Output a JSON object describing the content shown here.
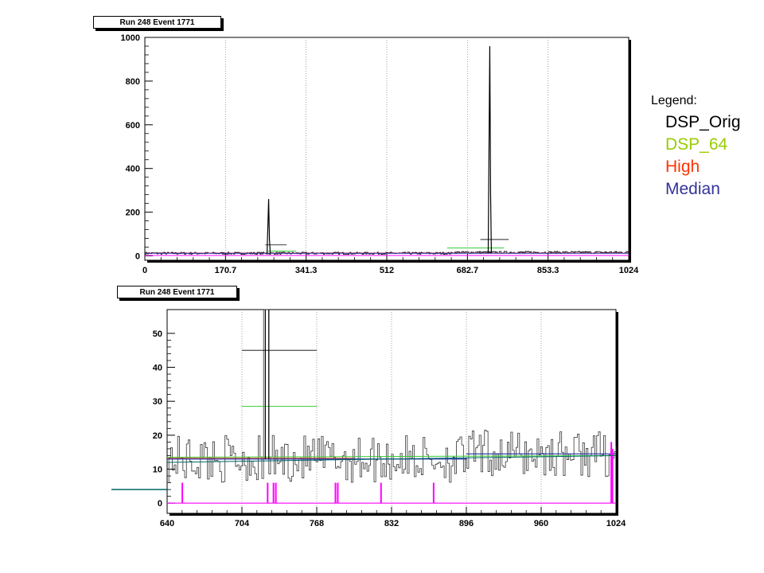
{
  "chart_data": [
    {
      "type": "line",
      "title": "Run 248 Event 1771",
      "xlim": [
        0,
        1024
      ],
      "ylim": [
        -20,
        1000
      ],
      "x_ticks": [
        "0",
        "170.7",
        "341.3",
        "512",
        "682.7",
        "853.3",
        "1024"
      ],
      "y_ticks": [
        "0",
        "200",
        "400",
        "600",
        "800",
        "1000"
      ],
      "grid": "vertical dotted at x tick positions",
      "baseline": 12,
      "peaks": [
        {
          "x": 262,
          "y": 260
        },
        {
          "x": 730,
          "y": 960
        }
      ],
      "series": [
        {
          "name": "DSP_Orig",
          "segments": [
            [
              255,
              300,
              20
            ],
            [
              710,
              770,
              45
            ]
          ]
        },
        {
          "name": "DSP_64",
          "segments": [
            [
              260,
              320,
              14
            ],
            [
              640,
              760,
              28
            ]
          ]
        },
        {
          "name": "High",
          "level": 13
        },
        {
          "name": "Median",
          "level": 12
        }
      ]
    },
    {
      "type": "line",
      "title": "Run 248 Event 1771",
      "xlim": [
        640,
        1024
      ],
      "ylim": [
        -3,
        57
      ],
      "x_ticks": [
        "640",
        "704",
        "768",
        "832",
        "896",
        "960",
        "1024"
      ],
      "y_ticks": [
        "0",
        "10",
        "20",
        "30",
        "40",
        "50"
      ],
      "grid": "vertical dotted at x tick positions",
      "segments": {
        "DSP_Orig_high": [
          704,
          768,
          45
        ],
        "DSP_64_high": [
          704,
          768,
          28.5
        ]
      },
      "median_levels": [
        [
          640,
          768,
          13
        ],
        [
          768,
          896,
          13
        ],
        [
          896,
          1024,
          14.5
        ]
      ],
      "pink_spikes": [
        {
          "x": 653,
          "y": -1
        },
        {
          "x": 726,
          "y": -1
        },
        {
          "x": 731,
          "y": -1
        },
        {
          "x": 733,
          "y": -1
        },
        {
          "x": 784,
          "y": -1
        },
        {
          "x": 786,
          "y": -1
        },
        {
          "x": 823,
          "y": -1
        },
        {
          "x": 868,
          "y": -1
        },
        {
          "x": 1020,
          "y": 18
        },
        {
          "x": 1021,
          "y": 16
        }
      ],
      "peak": {
        "x": 724,
        "y": 57
      }
    }
  ],
  "legend": {
    "title": "Legend:",
    "items": [
      {
        "label": "DSP_Orig",
        "color": "#000000"
      },
      {
        "label": "DSP_64",
        "color": "#99cc00"
      },
      {
        "label": "High",
        "color": "#ff3300"
      },
      {
        "label": "Median",
        "color": "#333399"
      }
    ]
  },
  "colors": {
    "trace": "#000000",
    "dsp64": "#33cc33",
    "high": "#ff3300",
    "median": "#2233aa",
    "teal": "#006666",
    "magenta": "#ff00ff",
    "grid": "#888888"
  }
}
